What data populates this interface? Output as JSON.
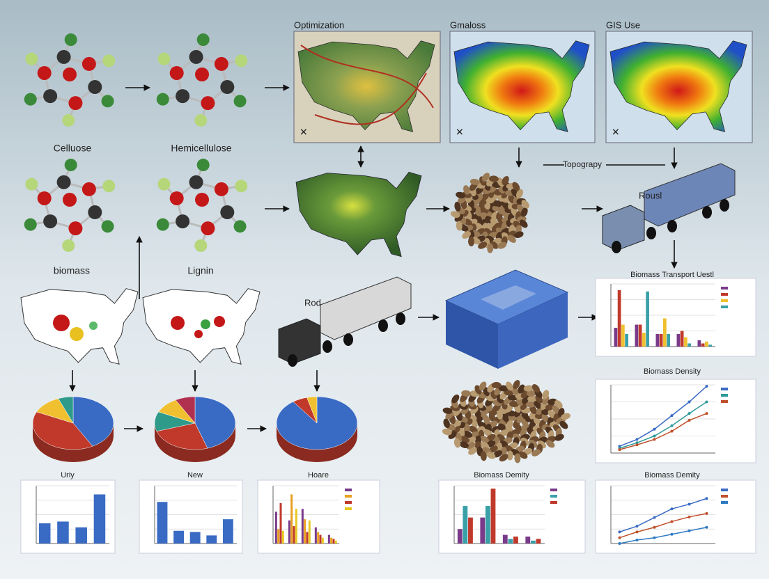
{
  "molecules": [
    "Celluose",
    "Hemicellulose",
    "biomass",
    "Lignin"
  ],
  "maps": [
    {
      "title": "Optimization",
      "style": "route"
    },
    {
      "title": "Gmaloss",
      "style": "heat"
    },
    {
      "title": "GIS Use",
      "style": "heat"
    }
  ],
  "topography": "Topograpy",
  "trucks": [
    "Rousl",
    "Rod"
  ],
  "pies": [
    {
      "values": [
        42,
        40,
        12,
        6
      ],
      "colors": [
        "#3a6bc4",
        "#c0392b",
        "#f0c030",
        "#2e9a8a"
      ]
    },
    {
      "values": [
        45,
        25,
        12,
        10,
        8
      ],
      "colors": [
        "#3a6bc4",
        "#c0392b",
        "#2e9a8a",
        "#f0c030",
        "#b03050"
      ]
    },
    {
      "values": [
        90,
        6,
        4
      ],
      "colors": [
        "#3a6bc4",
        "#c0392b",
        "#f0c030"
      ]
    }
  ],
  "charts": [
    {
      "type": "bar",
      "title": "Biomass Transport Uestl",
      "ylim": [
        0,
        100
      ],
      "series": [
        {
          "color": "#7a3a8a",
          "values": [
            30,
            35,
            20,
            20,
            10
          ]
        },
        {
          "color": "#c0392b",
          "values": [
            90,
            35,
            20,
            25,
            5
          ]
        },
        {
          "color": "#f0c030",
          "values": [
            35,
            22,
            45,
            15,
            8
          ]
        },
        {
          "color": "#3aa0a8",
          "values": [
            20,
            88,
            20,
            5,
            3
          ]
        }
      ]
    },
    {
      "type": "line",
      "title": "Biomass Density",
      "ylim": [
        0,
        100
      ],
      "series": [
        {
          "color": "#3a6bc4",
          "values": [
            10,
            20,
            35,
            55,
            75,
            98
          ]
        },
        {
          "color": "#2e9a9a",
          "values": [
            7,
            15,
            25,
            40,
            58,
            75
          ]
        },
        {
          "color": "#c0502b",
          "values": [
            5,
            12,
            20,
            32,
            48,
            58
          ]
        }
      ]
    },
    {
      "type": "bar",
      "title": "Uriy",
      "ylim": [
        0,
        100
      ],
      "series": [
        {
          "color": "#3a6bc4",
          "values": [
            35,
            38,
            28,
            85
          ]
        }
      ]
    },
    {
      "type": "bar",
      "title": "New",
      "ylim": [
        0,
        100
      ],
      "series": [
        {
          "color": "#3a6bc4",
          "values": [
            72,
            22,
            20,
            14,
            42
          ]
        }
      ]
    },
    {
      "type": "bar",
      "title": "Hoare",
      "ylim": [
        0,
        100
      ],
      "series": [
        {
          "color": "#7a3a8a",
          "values": [
            55,
            40,
            60,
            28,
            15
          ]
        },
        {
          "color": "#e8a020",
          "values": [
            25,
            85,
            42,
            20,
            10
          ]
        },
        {
          "color": "#c0392b",
          "values": [
            70,
            30,
            20,
            15,
            8
          ]
        },
        {
          "color": "#e8c820",
          "values": [
            22,
            60,
            40,
            10,
            5
          ]
        }
      ]
    },
    {
      "type": "bar",
      "title": "Biomass Demity",
      "ylim": [
        0,
        100
      ],
      "series": [
        {
          "color": "#7a3a8a",
          "values": [
            25,
            45,
            15,
            12
          ]
        },
        {
          "color": "#3aa0a8",
          "values": [
            65,
            65,
            8,
            5
          ]
        },
        {
          "color": "#c0392b",
          "values": [
            45,
            95,
            12,
            8
          ]
        }
      ]
    },
    {
      "type": "line",
      "title": "Biomass Demity",
      "ylim": [
        0,
        100
      ],
      "series": [
        {
          "color": "#3a6bc4",
          "values": [
            20,
            30,
            45,
            60,
            68,
            78
          ]
        },
        {
          "color": "#c0502b",
          "values": [
            10,
            20,
            28,
            38,
            46,
            52
          ]
        },
        {
          "color": "#2e7ac4",
          "values": [
            0,
            6,
            10,
            16,
            22,
            28
          ]
        }
      ]
    }
  ]
}
